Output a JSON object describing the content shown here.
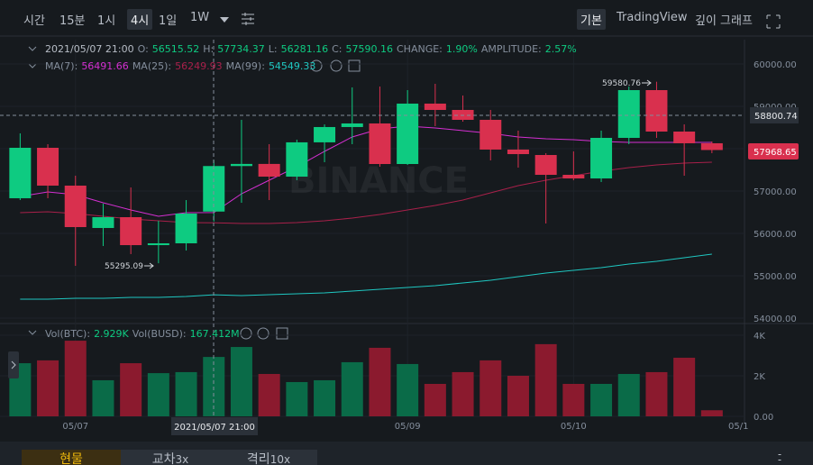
{
  "toolbar": {
    "left": [
      "시간",
      "15분",
      "1시",
      "4시",
      "1일",
      "1W"
    ],
    "right": [
      "기본",
      "TradingView",
      "깊이 그래프"
    ]
  },
  "ohlc_header": {
    "time": "2021/05/07 21:00",
    "items": [
      [
        "O:",
        "56515.52"
      ],
      [
        "H:",
        "57734.37"
      ],
      [
        "L:",
        "56281.16"
      ],
      [
        "C:",
        "57590.16"
      ],
      [
        "CHANGE:",
        "1.90%"
      ],
      [
        "AMPLITUDE:",
        "2.57%"
      ]
    ]
  },
  "ma_header": [
    [
      "MA(7):",
      "56491.66",
      "#d42fd1"
    ],
    [
      "MA(25):",
      "56249.93",
      "#a8204a"
    ],
    [
      "MA(99):",
      "54549.33",
      "#1fc7c1"
    ]
  ],
  "volume_header": [
    [
      "Vol(BTC):",
      "2.929K"
    ],
    [
      "Vol(BUSD):",
      "167.412M"
    ]
  ],
  "crosshair_price": "58800.74",
  "crosshair_time": "2021/05/07 21:00",
  "x_axis_extra_label": "05/1",
  "watermark": "BINANCE",
  "tabs": [
    [
      "현물",
      ""
    ],
    [
      "교차",
      "3x"
    ],
    [
      "격리",
      "10x"
    ]
  ],
  "chart_data": [
    {
      "type": "candlestick",
      "categories": [
        null,
        null,
        "05/07",
        null,
        null,
        null,
        null,
        null,
        null,
        null,
        null,
        null,
        null,
        null,
        "05/09",
        null,
        null,
        null,
        null,
        null,
        "05/10",
        null,
        null,
        null,
        null,
        null
      ],
      "open": [
        56830,
        58021,
        57128,
        56128,
        56383,
        55723,
        55766,
        56515.52,
        57590,
        57640,
        57340,
        58150,
        58511,
        58596,
        57638,
        59064,
        58915,
        58681,
        57979,
        57851,
        57383,
        57298,
        58255,
        59383,
        58404,
        58128
      ],
      "high": [
        58362,
        58106,
        57362,
        56702,
        57085,
        56298,
        56787,
        57734.37,
        58681,
        58106,
        58213,
        58574,
        59447,
        59468,
        59383,
        59532,
        59255,
        58915,
        58426,
        57894,
        57936,
        58426,
        59468,
        59580.76,
        58574,
        58170
      ],
      "low": [
        56787,
        56830,
        55234,
        55702,
        55511,
        55295.09,
        55596,
        56281.16,
        56723,
        56787,
        57255,
        57681,
        58106,
        57574,
        57617,
        58532,
        58638,
        57723,
        57553,
        56234,
        57255,
        57213,
        58106,
        58255,
        57362,
        57894
      ],
      "close": [
        58021,
        57128,
        56149,
        56383,
        55723,
        55766,
        56468,
        57590.16,
        57640,
        57340,
        58150,
        58511,
        58596,
        57638,
        59064,
        58915,
        58681,
        57979,
        57872,
        57383,
        57298,
        58255,
        59383,
        58404,
        58128,
        57968.65
      ],
      "up_color": "#0ecb81",
      "down_color": "#d9304e",
      "ma_lines": [
        {
          "color": "#d42fd1",
          "values": [
            56872,
            56979,
            56915,
            56723,
            56553,
            56404,
            56489,
            56491.66,
            56936,
            57255,
            57574,
            57936,
            58277,
            58468,
            58532,
            58489,
            58426,
            58362,
            58277,
            58234,
            58213,
            58170,
            58149,
            58149,
            58149,
            58149
          ]
        },
        {
          "color": "#a8204a",
          "values": [
            56489,
            56511,
            56468,
            56404,
            56340,
            56298,
            56255,
            56249.93,
            56234,
            56234,
            56255,
            56298,
            56362,
            56447,
            56553,
            56660,
            56787,
            56957,
            57128,
            57255,
            57362,
            57468,
            57553,
            57617,
            57660,
            57681
          ]
        },
        {
          "color": "#1fc7c1",
          "values": [
            54447,
            54447,
            54468,
            54468,
            54489,
            54489,
            54511,
            54549.33,
            54532,
            54553,
            54574,
            54596,
            54638,
            54681,
            54723,
            54766,
            54830,
            54894,
            54979,
            55064,
            55128,
            55191,
            55277,
            55340,
            55426,
            55511
          ]
        }
      ],
      "ylim": [
        53915,
        60489
      ],
      "yticks": [
        {
          "value": 54000,
          "label": "54000.00"
        },
        {
          "value": 55000,
          "label": "55000.00"
        },
        {
          "value": 56000,
          "label": "56000.00"
        },
        {
          "value": 57000,
          "label": "57000.00"
        },
        {
          "value": 58000,
          "label": "58000.00"
        },
        {
          "value": 59000,
          "label": "59000.00"
        },
        {
          "value": 60000,
          "label": "60000.00"
        }
      ],
      "grid": true
    },
    {
      "type": "bar",
      "values": [
        2620,
        2760,
        3730,
        1780,
        2620,
        2130,
        2180,
        2929,
        3420,
        2090,
        1690,
        1780,
        2670,
        3380,
        2580,
        1600,
        2180,
        2760,
        2000,
        3560,
        1600,
        1600,
        2090,
        2180,
        2890,
        300
      ],
      "up_color": "#0a6b48",
      "down_color": "#8b1a2e",
      "ylim": [
        0,
        4444
      ],
      "yticks": [
        {
          "value": 0,
          "label": "0.00"
        },
        {
          "value": 2000,
          "label": "2K"
        },
        {
          "value": 4000,
          "label": "4K"
        }
      ],
      "grid": true
    }
  ]
}
